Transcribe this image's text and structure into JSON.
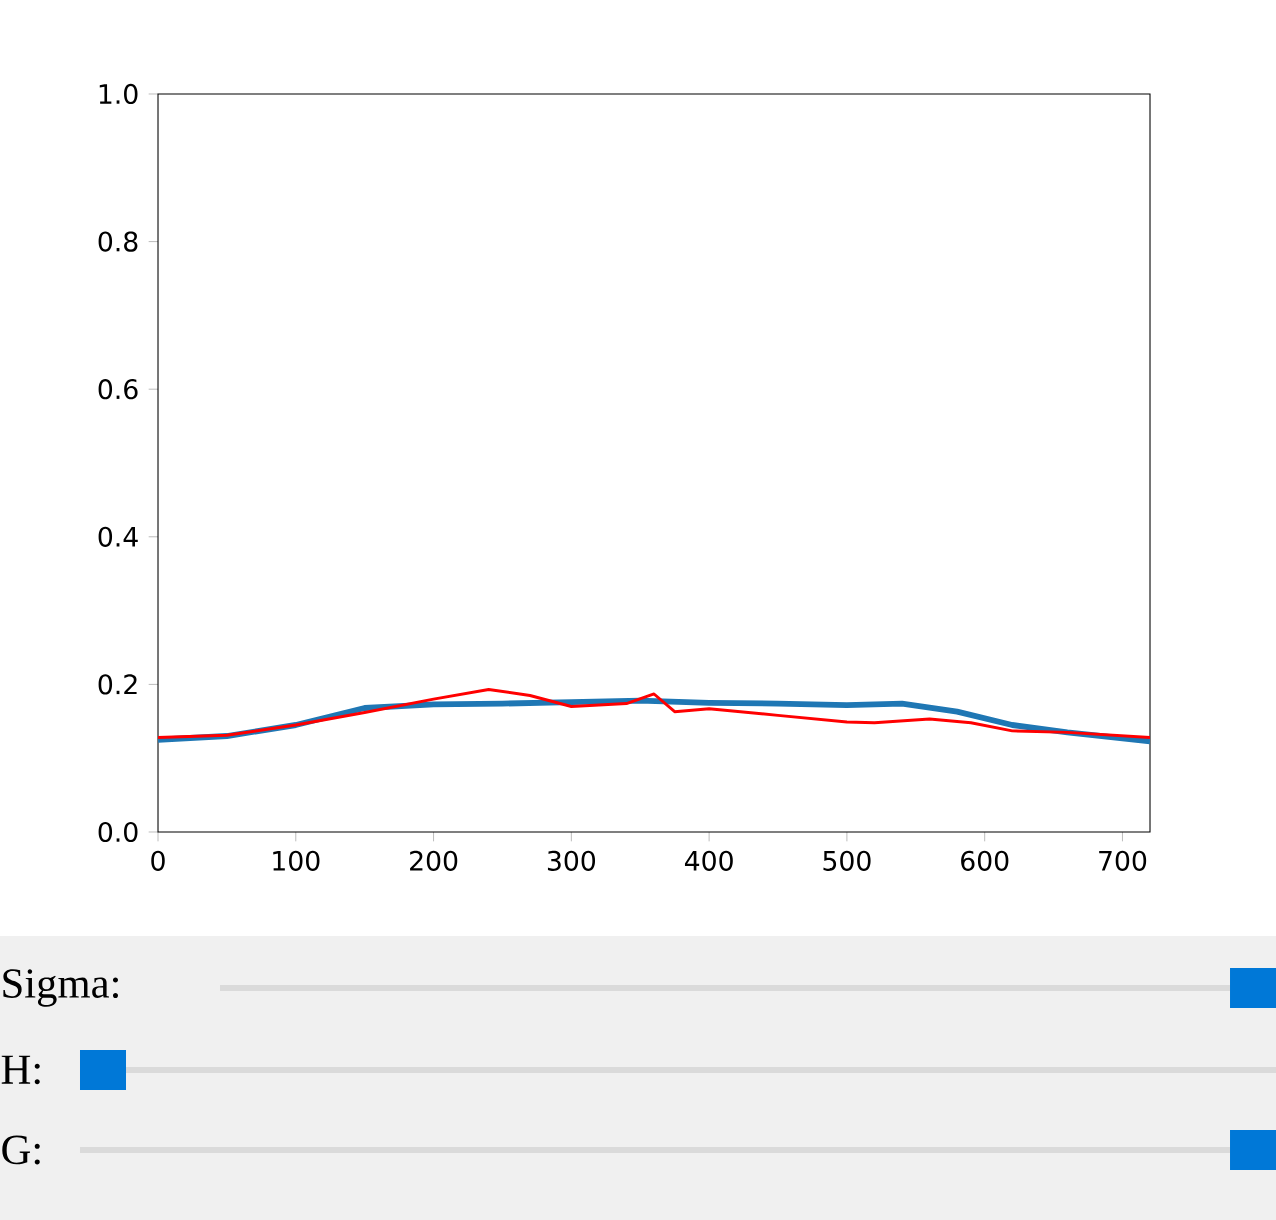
{
  "chart_data": {
    "type": "line",
    "xlim": [
      0,
      720
    ],
    "ylim": [
      0,
      1.0
    ],
    "xticks": [
      0,
      100,
      200,
      300,
      400,
      500,
      600,
      700
    ],
    "yticks": [
      {
        "value": 0,
        "label": "0.0"
      },
      {
        "value": 0.2,
        "label": "0.2"
      },
      {
        "value": 0.4,
        "label": "0.4"
      },
      {
        "value": 0.6,
        "label": "0.6"
      },
      {
        "value": 0.8,
        "label": "0.8"
      },
      {
        "value": 1.0,
        "label": "1.0"
      }
    ],
    "grid": false,
    "marker": "none",
    "line_style": "solid",
    "series": [
      {
        "color": "#1f77b4",
        "x": [
          0,
          50,
          100,
          150,
          200,
          250,
          300,
          350,
          400,
          450,
          500,
          540,
          580,
          620,
          660,
          720
        ],
        "values": [
          0.125,
          0.13,
          0.145,
          0.168,
          0.173,
          0.174,
          0.176,
          0.178,
          0.175,
          0.174,
          0.172,
          0.174,
          0.163,
          0.145,
          0.135,
          0.123
        ]
      },
      {
        "color": "#ff0000",
        "x": [
          0,
          50,
          100,
          150,
          200,
          240,
          270,
          300,
          340,
          360,
          375,
          400,
          450,
          500,
          520,
          560,
          590,
          620,
          660,
          720
        ],
        "values": [
          0.128,
          0.131,
          0.145,
          0.162,
          0.18,
          0.193,
          0.185,
          0.17,
          0.174,
          0.187,
          0.163,
          0.167,
          0.158,
          0.149,
          0.148,
          0.153,
          0.148,
          0.137,
          0.135,
          0.128
        ]
      }
    ],
    "annotations": [
      "Sigma:",
      "H:",
      "G:"
    ]
  }
}
